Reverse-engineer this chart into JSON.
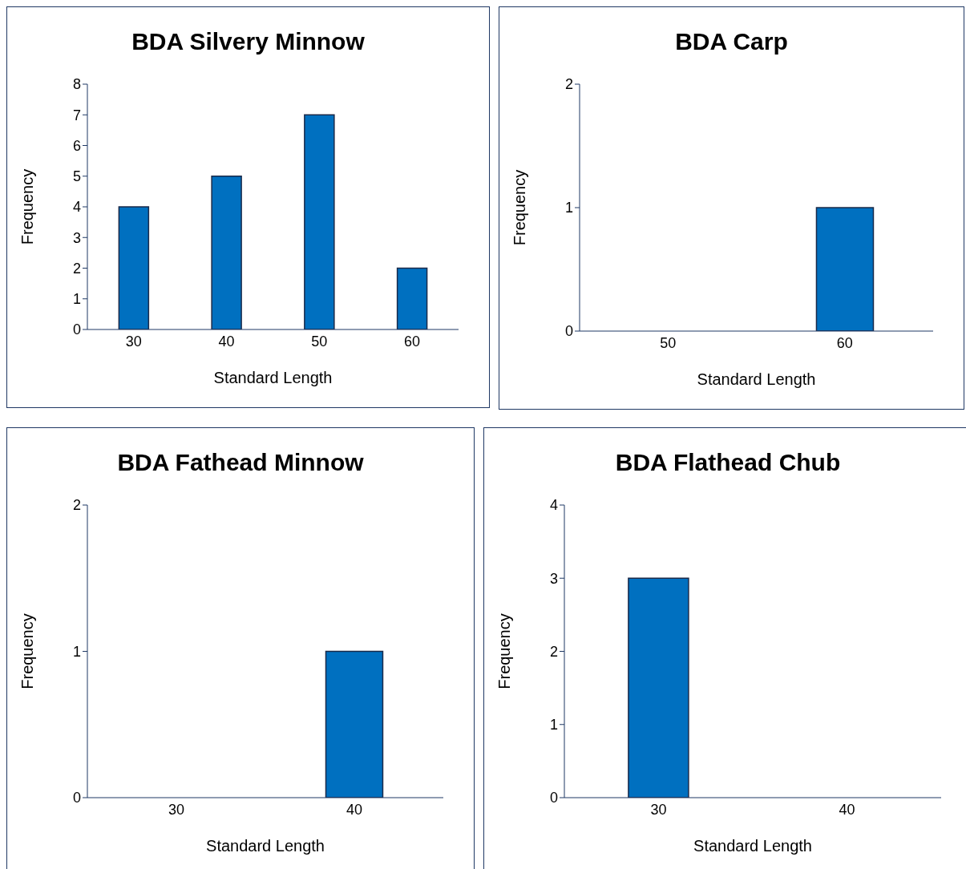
{
  "chart_data": [
    {
      "type": "bar",
      "title": "BDA Silvery Minnow",
      "xlabel": "Standard Length",
      "ylabel": "Frequency",
      "categories": [
        "30",
        "40",
        "50",
        "60"
      ],
      "values": [
        4,
        5,
        7,
        2
      ],
      "color": "#0070c0",
      "ylim": [
        0,
        8
      ],
      "yticks": [
        0,
        1,
        2,
        3,
        4,
        5,
        6,
        7,
        8
      ]
    },
    {
      "type": "bar",
      "title": "BDA Carp",
      "xlabel": "Standard Length",
      "ylabel": "Frequency",
      "categories": [
        "50",
        "60"
      ],
      "values": [
        0,
        1
      ],
      "color": "#0070c0",
      "ylim": [
        0,
        2
      ],
      "yticks": [
        0,
        1,
        2
      ]
    },
    {
      "type": "bar",
      "title": "BDA Fathead Minnow",
      "xlabel": "Standard Length",
      "ylabel": "Frequency",
      "categories": [
        "30",
        "40"
      ],
      "values": [
        0,
        1
      ],
      "color": "#0070c0",
      "ylim": [
        0,
        2
      ],
      "yticks": [
        0,
        1,
        2
      ]
    },
    {
      "type": "bar",
      "title": "BDA Flathead Chub",
      "xlabel": "Standard Length",
      "ylabel": "Frequency",
      "categories": [
        "30",
        "40"
      ],
      "values": [
        3,
        0
      ],
      "color": "#0070c0",
      "ylim": [
        0,
        4
      ],
      "yticks": [
        0,
        1,
        2,
        3,
        4
      ]
    }
  ]
}
